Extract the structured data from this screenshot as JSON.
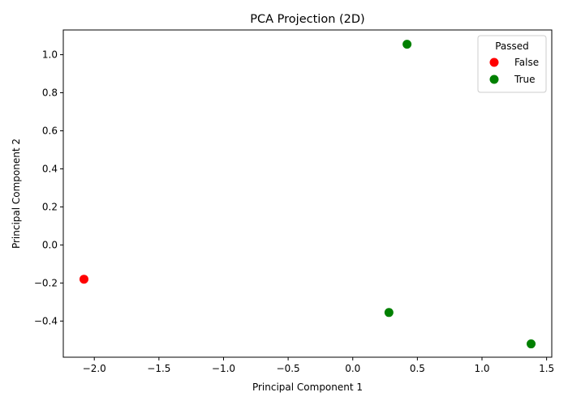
{
  "chart_data": {
    "type": "scatter",
    "title": "PCA Projection (2D)",
    "xlabel": "Principal Component 1",
    "ylabel": "Principal Component 2",
    "xlim": [
      -2.24,
      1.54
    ],
    "ylim": [
      -0.59,
      1.13
    ],
    "xticks": [
      -2.0,
      -1.5,
      -1.0,
      -0.5,
      0.0,
      0.5,
      1.0,
      1.5
    ],
    "xtick_labels": [
      "−2.0",
      "−1.5",
      "−1.0",
      "−0.5",
      "0.0",
      "0.5",
      "1.0",
      "1.5"
    ],
    "yticks": [
      -0.4,
      -0.2,
      0.0,
      0.2,
      0.4,
      0.6,
      0.8,
      1.0
    ],
    "ytick_labels": [
      "−0.4",
      "−0.2",
      "0.0",
      "0.2",
      "0.4",
      "0.6",
      "0.8",
      "1.0"
    ],
    "grid": false,
    "legend": {
      "title": "Passed",
      "placement": "top-right",
      "entries": [
        {
          "label": "False",
          "color": "#ff0000"
        },
        {
          "label": "True",
          "color": "#008000"
        }
      ]
    },
    "series": [
      {
        "name": "False",
        "color": "#ff0000",
        "points": [
          {
            "x": -2.08,
            "y": -0.18
          }
        ]
      },
      {
        "name": "True",
        "color": "#008000",
        "points": [
          {
            "x": 0.42,
            "y": 1.055
          },
          {
            "x": 0.28,
            "y": -0.355
          },
          {
            "x": 1.38,
            "y": -0.52
          }
        ]
      }
    ]
  }
}
